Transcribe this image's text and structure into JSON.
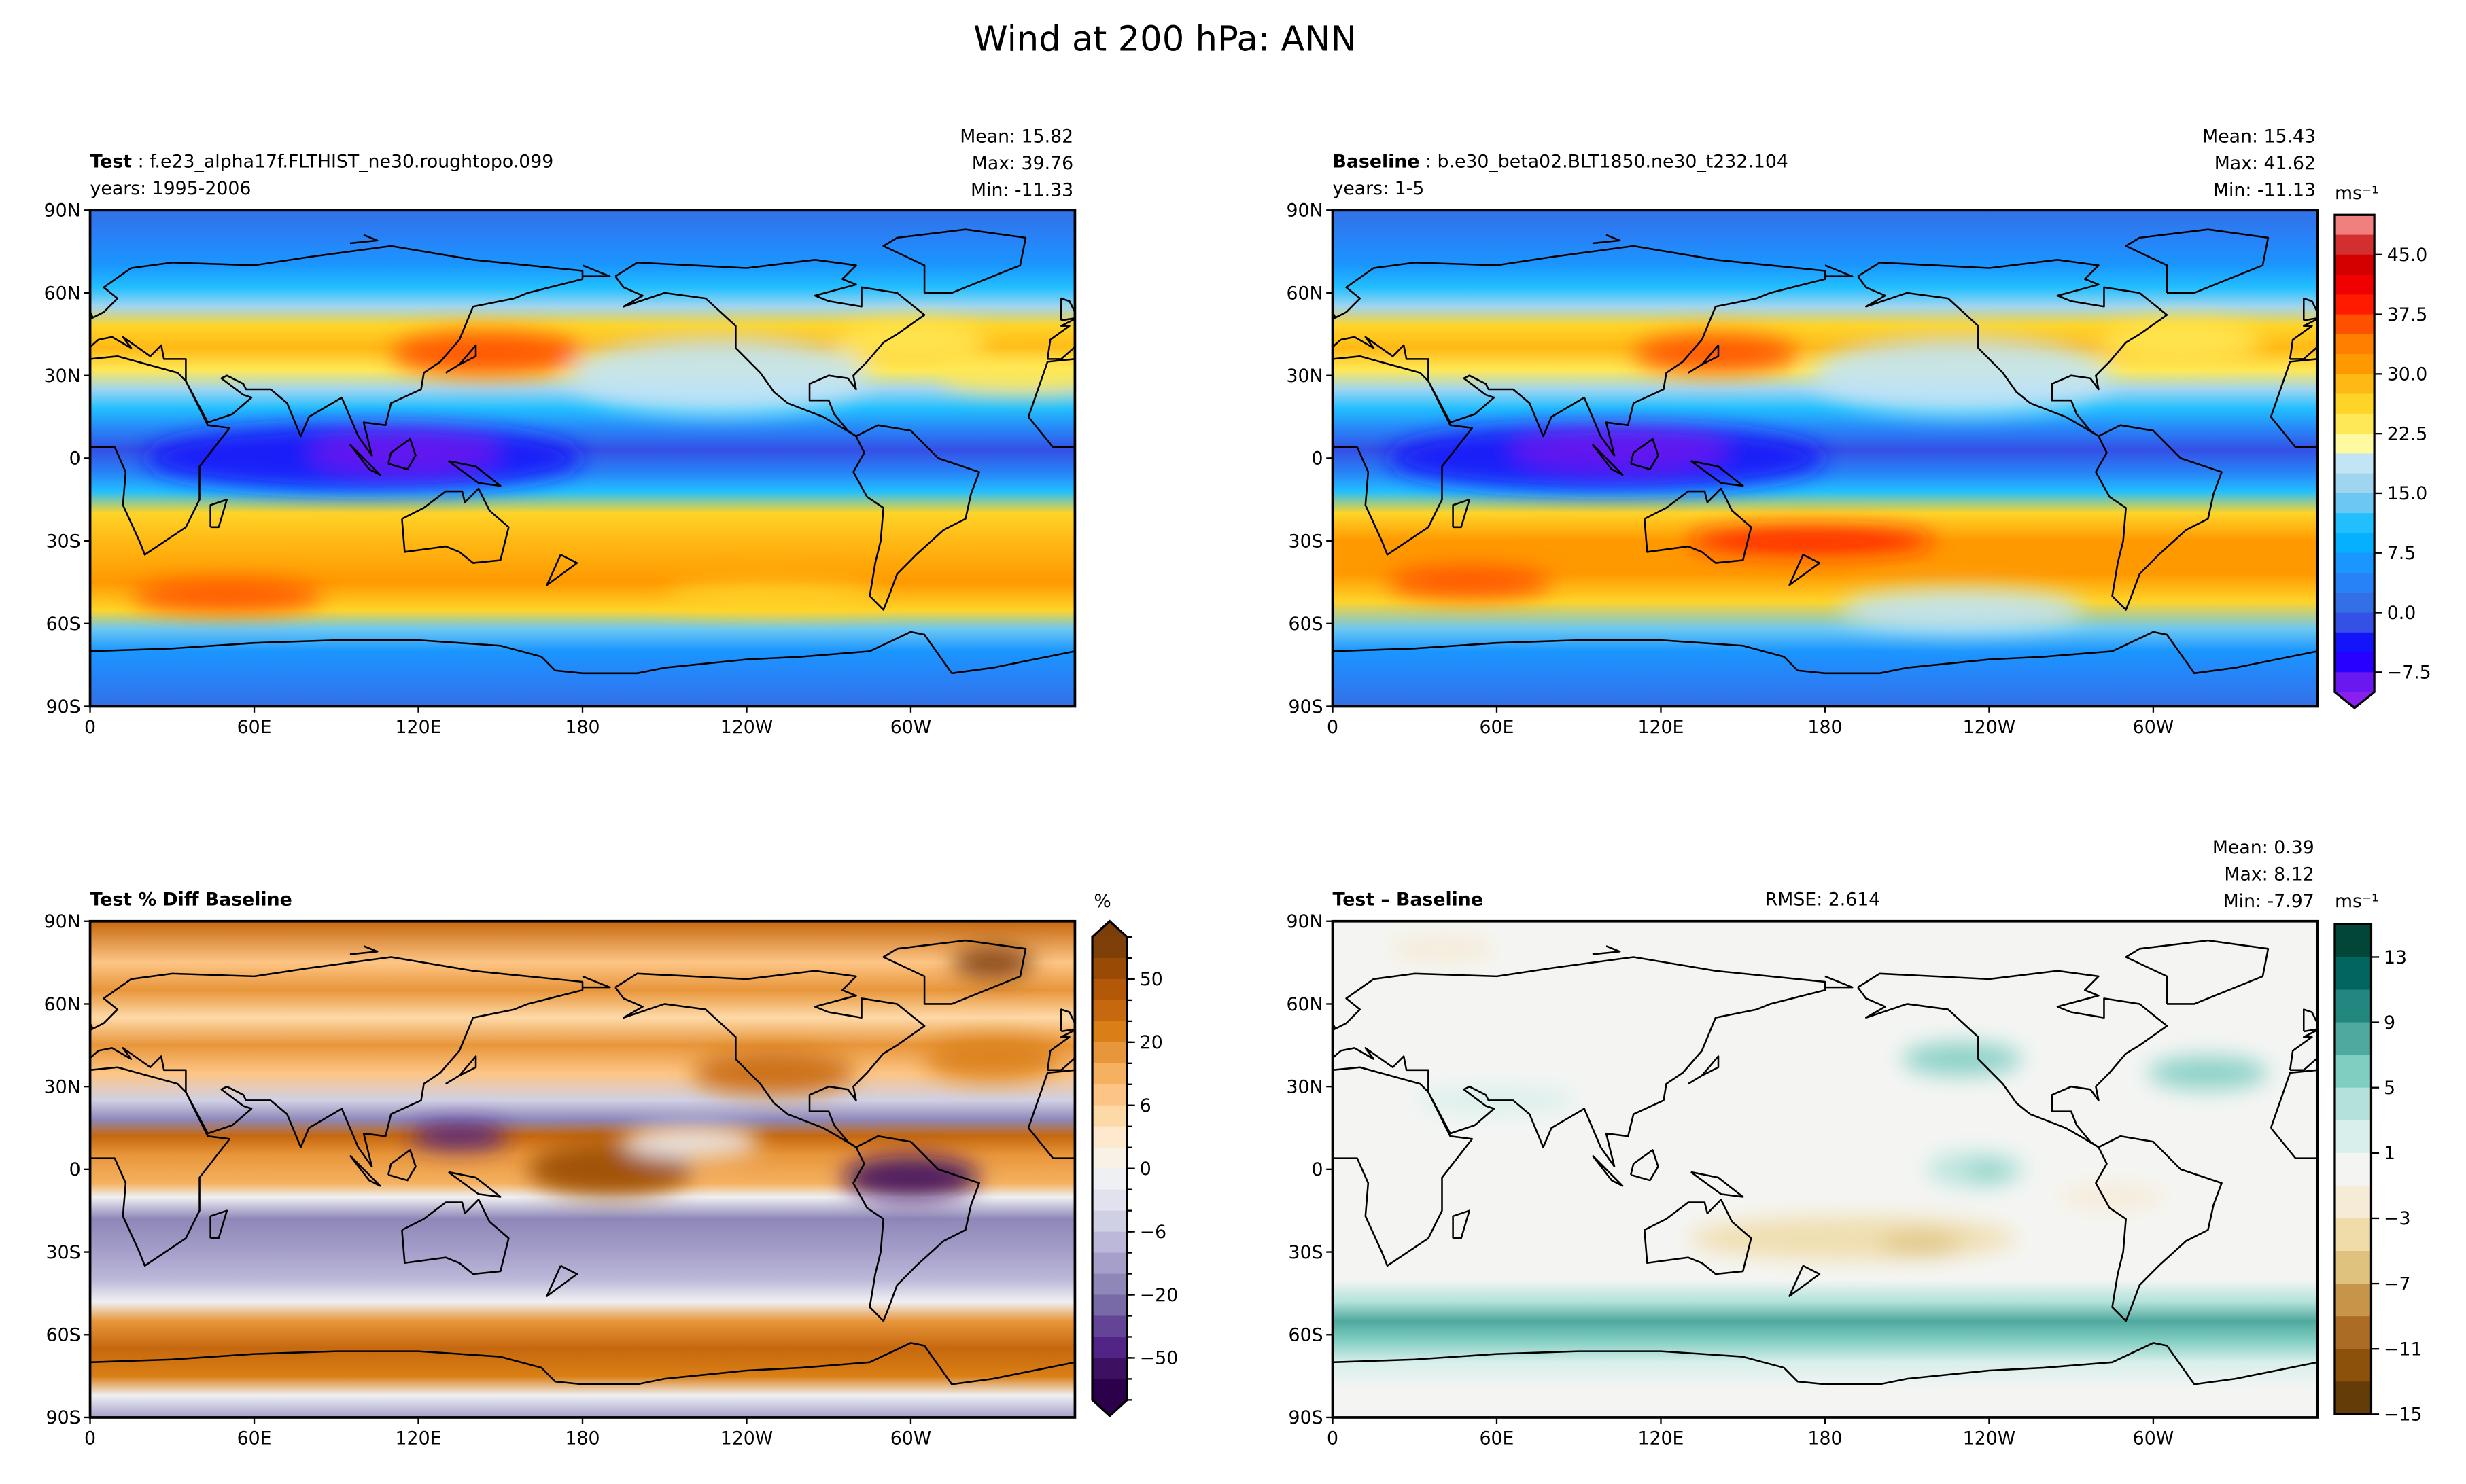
{
  "title": "Wind at 200 hPa: ANN",
  "panels": [
    {
      "id": "test",
      "label_bold": "Test",
      "label_sep": " : ",
      "label_rest": "f.e23_alpha17f.FLTHIST_ne30.roughtopo.099",
      "years": "years: 1995-2006",
      "stats": [
        "Mean: 15.82",
        "Max: 39.76",
        "Min: -11.33"
      ]
    },
    {
      "id": "baseline",
      "label_bold": "Baseline",
      "label_sep": " : ",
      "label_rest": "b.e30_beta02.BLT1850.ne30_t232.104",
      "years": "years: 1-5",
      "stats": [
        "Mean: 15.43",
        "Max: 41.62",
        "Min: -11.13"
      ]
    },
    {
      "id": "pct-diff",
      "label_bold": "Test % Diff Baseline"
    },
    {
      "id": "diff",
      "label_bold": "Test – Baseline",
      "rmse": "RMSE: 2.614",
      "stats": [
        "Mean:  0.39",
        "Max:  8.12",
        "Min: -7.97"
      ]
    }
  ],
  "axes": {
    "lat_ticks": [
      "90N",
      "60N",
      "30N",
      "0",
      "30S",
      "60S",
      "90S"
    ],
    "lon_ticks": [
      "0",
      "60E",
      "120E",
      "180",
      "120W",
      "60W"
    ]
  },
  "colorbars": [
    {
      "id": "wind",
      "unit": "ms⁻¹",
      "extend": "min",
      "range": [
        -10,
        50
      ],
      "ticks": [
        "45.0",
        "37.5",
        "30.0",
        "22.5",
        "15.0",
        "7.5",
        "0.0",
        "−7.5"
      ],
      "colors": [
        "#f08080",
        "#d42f2f",
        "#d40000",
        "#f00000",
        "#ff1a00",
        "#ff5000",
        "#ff7f00",
        "#ff9900",
        "#ffb915",
        "#ffd428",
        "#ffe855",
        "#fffaa0",
        "#c2e4f5",
        "#a0d5f0",
        "#6cc8f2",
        "#22bfff",
        "#04b0ff",
        "#1a96ff",
        "#2882f7",
        "#3370e6",
        "#3450e6",
        "#1414fa",
        "#2800ff",
        "#6a18f0"
      ],
      "extend_color": "#8a20f0"
    },
    {
      "id": "pct",
      "unit": "%",
      "extend": "both",
      "ticks": [
        "50",
        "20",
        "6",
        "0",
        "−6",
        "−20",
        "−50"
      ],
      "colors": [
        "#7f3f08",
        "#994a05",
        "#b35806",
        "#c6680f",
        "#da7f15",
        "#e8963b",
        "#f5b160",
        "#fdc585",
        "#fed9a8",
        "#fee9cf",
        "#f8f1e6",
        "#eff0f3",
        "#e2e2ee",
        "#d0d0e5",
        "#bcb8d9",
        "#a59fca",
        "#8e87b8",
        "#776aa6",
        "#634496",
        "#522488",
        "#3e1062",
        "#2d004b"
      ],
      "extend_top": "#7b3d0a",
      "extend_bottom": "#2d004b"
    },
    {
      "id": "diff",
      "unit": "ms⁻¹",
      "extend": "neither",
      "range": [
        -15,
        15
      ],
      "ticks": [
        "13",
        "9",
        "5",
        "1",
        "−3",
        "−7",
        "−11",
        "−15"
      ],
      "colors": [
        "#014636",
        "#016560",
        "#22877e",
        "#4fa99e",
        "#80cdc1",
        "#b2e2da",
        "#d8efeb",
        "#f4f5f3",
        "#f6ebd6",
        "#f0dca8",
        "#dfc27d",
        "#c79549",
        "#ab6d25",
        "#8c510a",
        "#643c07"
      ]
    }
  ]
}
